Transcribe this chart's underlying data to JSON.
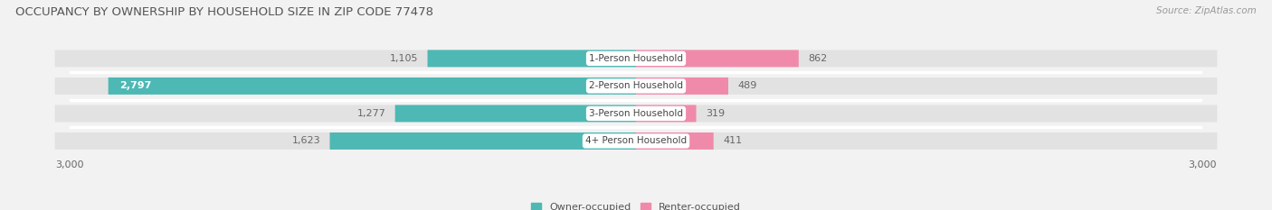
{
  "title": "OCCUPANCY BY OWNERSHIP BY HOUSEHOLD SIZE IN ZIP CODE 77478",
  "source": "Source: ZipAtlas.com",
  "categories": [
    "1-Person Household",
    "2-Person Household",
    "3-Person Household",
    "4+ Person Household"
  ],
  "owner_values": [
    1105,
    2797,
    1277,
    1623
  ],
  "renter_values": [
    862,
    489,
    319,
    411
  ],
  "owner_color": "#4db8b4",
  "owner_color2": "#2a9d9a",
  "renter_color": "#f08aaa",
  "axis_max": 3000,
  "axis_label": "3,000",
  "bg_color": "#f2f2f2",
  "bar_bg_color": "#e2e2e2",
  "row_sep_color": "#ffffff",
  "title_fontsize": 9.5,
  "source_fontsize": 7.5,
  "label_fontsize": 8,
  "tick_fontsize": 8,
  "legend_fontsize": 8,
  "category_label_fontsize": 7.5
}
